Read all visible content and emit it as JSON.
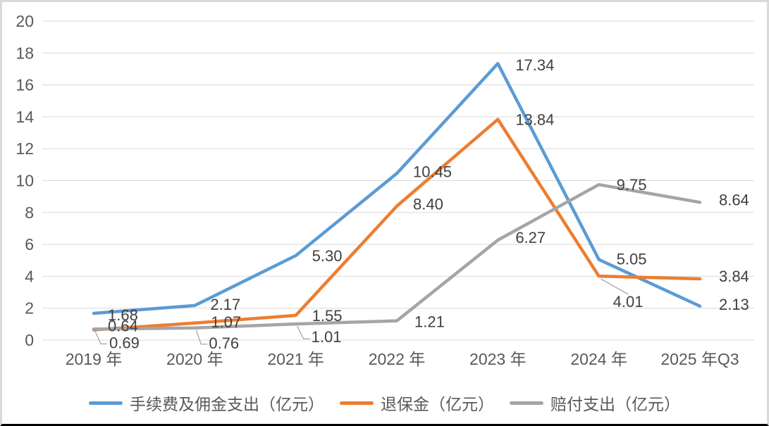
{
  "chart_data": {
    "type": "line",
    "title": "",
    "xlabel": "",
    "ylabel": "",
    "categories": [
      "2019 年",
      "2020 年",
      "2021 年",
      "2022 年",
      "2023 年",
      "2024 年",
      "2025 年Q3"
    ],
    "series": [
      {
        "name": "手续费及佣金支出（亿元）",
        "color": "#5B9BD5",
        "values": [
          1.68,
          2.17,
          5.3,
          10.45,
          17.34,
          5.05,
          2.13
        ],
        "labels": [
          "1.68",
          "2.17",
          "5.30",
          "10.45",
          "17.34",
          "5.05",
          "2.13"
        ]
      },
      {
        "name": "退保金（亿元）",
        "color": "#ED7D31",
        "values": [
          0.64,
          1.07,
          1.55,
          8.4,
          13.84,
          4.01,
          3.84
        ],
        "labels": [
          "0.64",
          "1.07",
          "1.55",
          "8.40",
          "13.84",
          "4.01",
          "3.84"
        ]
      },
      {
        "name": "赔付支出（亿元）",
        "color": "#A5A5A5",
        "values": [
          0.69,
          0.76,
          1.01,
          1.21,
          6.27,
          9.75,
          8.64
        ],
        "labels": [
          "0.69",
          "0.76",
          "1.01",
          "1.21",
          "6.27",
          "9.75",
          "8.64"
        ]
      }
    ],
    "yticks": [
      "0",
      "2",
      "4",
      "6",
      "8",
      "10",
      "12",
      "14",
      "16",
      "18",
      "20"
    ],
    "ylim": [
      0,
      20
    ],
    "ytick_step": 2,
    "grid": true,
    "legend_position": "bottom",
    "layout_hints": {
      "colors": {
        "grid": "#D9D9D9",
        "axis_text": "#595959",
        "label_text": "#404040",
        "leader": "#A6A6A6",
        "background": "#FFFFFF"
      },
      "label_offsets": [
        [
          [
            20,
            10
          ],
          [
            22,
            6
          ],
          [
            23,
            8
          ],
          [
            23,
            5
          ],
          [
            25,
            10
          ],
          [
            25,
            7
          ],
          [
            27,
            5
          ]
        ],
        [
          [
            20,
            2
          ],
          [
            23,
            6
          ],
          [
            23,
            8
          ],
          [
            23,
            5
          ],
          [
            25,
            8
          ],
          [
            20,
            44
          ],
          [
            27,
            4
          ]
        ],
        [
          [
            22,
            27
          ],
          [
            20,
            29
          ],
          [
            22,
            26
          ],
          [
            25,
            9
          ],
          [
            25,
            4
          ],
          [
            25,
            8
          ],
          [
            27,
            4
          ]
        ]
      ],
      "leaders": [
        [],
        [
          {
            "i": 5,
            "pts": [
              [
                3,
                4
              ],
              [
                42,
                26
              ]
            ]
          }
        ],
        [
          {
            "i": 0,
            "pts": [
              [
                2,
                3
              ],
              [
                10,
                21
              ],
              [
                19,
                21
              ]
            ]
          },
          {
            "i": 1,
            "pts": [
              [
                2,
                3
              ],
              [
                9,
                23
              ],
              [
                18,
                23
              ]
            ]
          },
          {
            "i": 2,
            "pts": [
              [
                2,
                3
              ],
              [
                11,
                21
              ],
              [
                20,
                21
              ]
            ]
          }
        ]
      ]
    }
  }
}
